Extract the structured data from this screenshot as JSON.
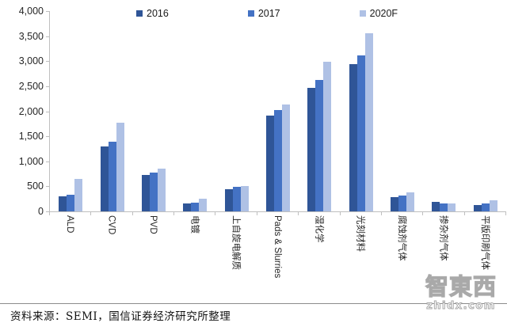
{
  "chart_data": {
    "type": "bar",
    "title": "",
    "xlabel": "",
    "ylabel": "",
    "ylim": [
      0,
      4000
    ],
    "ytick_step": 500,
    "ytick_labels": [
      "0",
      "500",
      "1,000",
      "1,500",
      "2,000",
      "2,500",
      "3,000",
      "3,500",
      "4,000"
    ],
    "grid": false,
    "legend_position": "top",
    "categories": [
      "ALD",
      "CVD",
      "PVD",
      "电镀",
      "上自旋电解质",
      "Pads & Slurries",
      "湿化学",
      "光刻材料",
      "腐蚀剂气体",
      "掺杂剂气体",
      "平版印刷气体"
    ],
    "series": [
      {
        "name": "2016",
        "color": "#2F5597",
        "values": [
          305,
          1290,
          725,
          165,
          450,
          1920,
          2470,
          2945,
          285,
          185,
          125
        ]
      },
      {
        "name": "2017",
        "color": "#4472C4",
        "values": [
          330,
          1390,
          770,
          180,
          495,
          2020,
          2625,
          3110,
          315,
          155,
          155
        ]
      },
      {
        "name": "2020F",
        "color": "#AFC1E5",
        "values": [
          650,
          1765,
          860,
          255,
          505,
          2140,
          2990,
          3560,
          380,
          160,
          215
        ]
      }
    ]
  },
  "colors": {
    "axis": "#bfbfbf",
    "footer_rule": "#8c8c8c",
    "watermark": "#a9a9a9"
  },
  "footer": {
    "source_text": "资料来源：SEMI，国信证券经济研究所整理"
  },
  "watermark": {
    "logo": "智東西",
    "url_text": "zhidx.com"
  }
}
